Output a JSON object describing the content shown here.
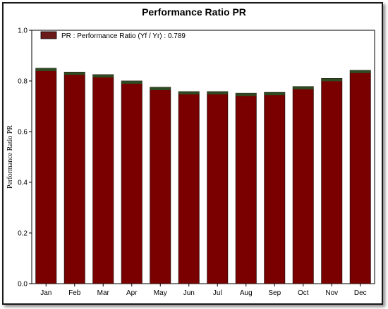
{
  "chart_data": {
    "type": "bar",
    "title": "Performance Ratio PR",
    "ylabel": "Performance Ratio PR",
    "xlabel": "",
    "categories": [
      "Jan",
      "Feb",
      "Mar",
      "Apr",
      "May",
      "Jun",
      "Jul",
      "Aug",
      "Sep",
      "Oct",
      "Nov",
      "Dec"
    ],
    "series": [
      {
        "name": "PR : Performance Ratio (Yf / Yr) :  0.789",
        "values": [
          0.85,
          0.835,
          0.825,
          0.8,
          0.775,
          0.758,
          0.758,
          0.752,
          0.755,
          0.778,
          0.81,
          0.842
        ]
      }
    ],
    "ylim": [
      0,
      1.0
    ],
    "yticks": [
      "0.0",
      "0.2",
      "0.4",
      "0.6",
      "0.8",
      "1.0"
    ],
    "grid": false,
    "legend_position": "top-left",
    "colors": {
      "bar": "#7a0000",
      "bar_edge": "#2a1010",
      "bar_top": "#2e4a22",
      "legend_swatch": "#6b1a1a"
    }
  }
}
